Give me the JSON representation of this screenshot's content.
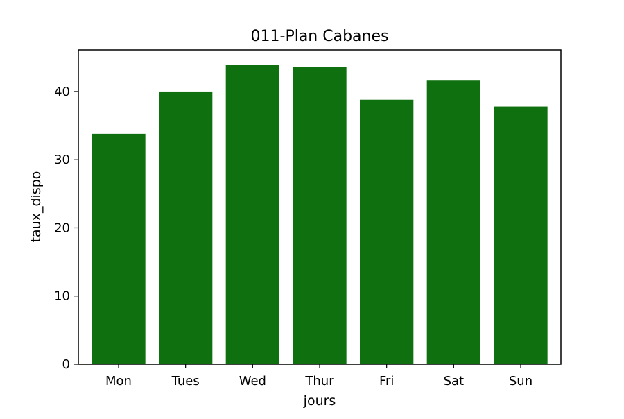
{
  "chart_data": {
    "type": "bar",
    "title": "011-Plan Cabanes",
    "xlabel": "jours",
    "ylabel": "taux_dispo",
    "categories": [
      "Mon",
      "Tues",
      "Wed",
      "Thur",
      "Fri",
      "Sat",
      "Sun"
    ],
    "values": [
      33.8,
      40.0,
      43.9,
      43.6,
      38.8,
      41.6,
      37.8
    ],
    "ylim": [
      0,
      46.1
    ],
    "yticks": [
      0,
      10,
      20,
      30,
      40
    ],
    "bar_color": "#0e700e",
    "grid": false,
    "legend": "none"
  }
}
